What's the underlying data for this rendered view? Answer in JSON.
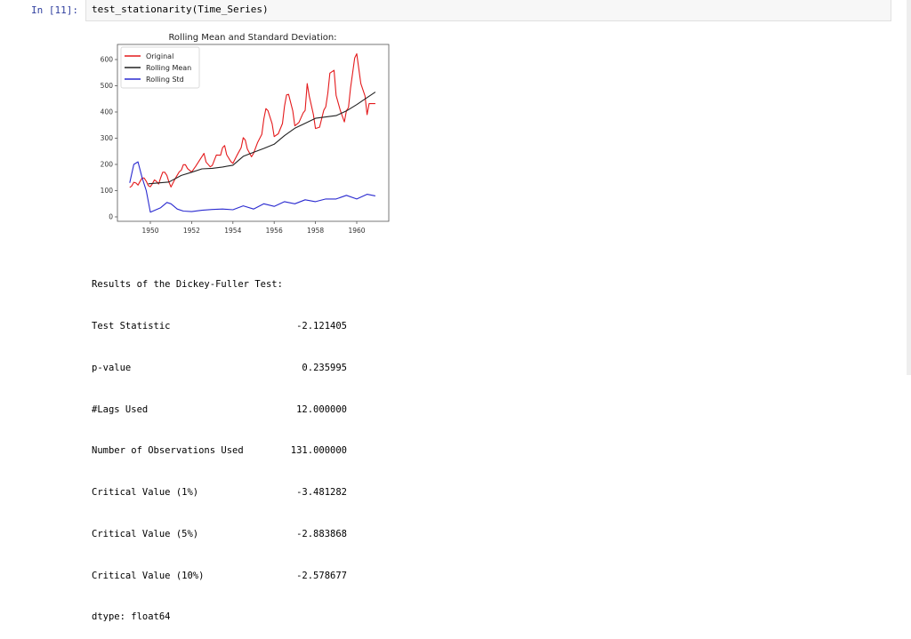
{
  "cell": {
    "prompt": "In [11]:",
    "code": "test_stationarity(Time_Series)"
  },
  "chart_data": {
    "type": "line",
    "title": "Rolling Mean and Standard Deviation:",
    "xlabel": "",
    "ylabel": "",
    "xlim": [
      1948.6,
      1961.5
    ],
    "ylim": [
      -20,
      650
    ],
    "x_ticks": [
      "1950",
      "1952",
      "1954",
      "1956",
      "1958",
      "1960"
    ],
    "y_ticks": [
      "0",
      "100",
      "200",
      "300",
      "400",
      "500",
      "600"
    ],
    "legend": {
      "position": "upper left",
      "entries": [
        {
          "label": "Original",
          "color": "#e41a1c"
        },
        {
          "label": "Rolling Mean",
          "color": "#222222"
        },
        {
          "label": "Rolling Std",
          "color": "#2a2ad0"
        }
      ]
    },
    "grid": false,
    "series": [
      {
        "name": "Original",
        "color": "#e41a1c",
        "x": [
          1949.0,
          1949.1,
          1949.2,
          1949.3,
          1949.4,
          1949.5,
          1949.6,
          1949.7,
          1949.8,
          1949.9,
          1950.0,
          1950.1,
          1950.2,
          1950.3,
          1950.4,
          1950.5,
          1950.6,
          1950.7,
          1950.8,
          1950.9,
          1951.0,
          1951.2,
          1951.4,
          1951.5,
          1951.6,
          1951.7,
          1951.8,
          1952.0,
          1952.2,
          1952.4,
          1952.5,
          1952.6,
          1952.7,
          1952.9,
          1953.0,
          1953.2,
          1953.4,
          1953.5,
          1953.6,
          1953.7,
          1953.9,
          1954.0,
          1954.2,
          1954.4,
          1954.5,
          1954.6,
          1954.7,
          1954.9,
          1955.0,
          1955.2,
          1955.4,
          1955.5,
          1955.6,
          1955.7,
          1955.9,
          1956.0,
          1956.2,
          1956.4,
          1956.5,
          1956.6,
          1956.7,
          1956.9,
          1957.0,
          1957.2,
          1957.4,
          1957.5,
          1957.6,
          1957.7,
          1957.9,
          1958.0,
          1958.2,
          1958.4,
          1958.5,
          1958.6,
          1958.7,
          1958.9,
          1959.0,
          1959.2,
          1959.4,
          1959.5,
          1959.6,
          1959.7,
          1959.9,
          1960.0,
          1960.2,
          1960.4,
          1960.5,
          1960.6,
          1960.7,
          1960.9
        ],
        "values": [
          112,
          118,
          132,
          129,
          121,
          135,
          148,
          148,
          136,
          119,
          115,
          126,
          141,
          135,
          125,
          149,
          170,
          170,
          158,
          133,
          114,
          145,
          172,
          178,
          199,
          199,
          184,
          171,
          193,
          218,
          230,
          242,
          209,
          191,
          196,
          236,
          235,
          264,
          272,
          237,
          211,
          204,
          235,
          264,
          302,
          293,
          259,
          229,
          242,
          284,
          315,
          374,
          413,
          405,
          355,
          306,
          317,
          356,
          422,
          465,
          467,
          404,
          347,
          360,
          396,
          406,
          508,
          461,
          390,
          337,
          342,
          406,
          420,
          472,
          548,
          559,
          463,
          407,
          362,
          405,
          417,
          491,
          606,
          622,
          508,
          461,
          390,
          432,
          432,
          432
        ]
      },
      {
        "name": "Rolling Mean",
        "color": "#222222",
        "x": [
          1949.9,
          1950.9,
          1951.5,
          1952.0,
          1952.5,
          1953.0,
          1953.5,
          1954.0,
          1954.5,
          1955.0,
          1955.5,
          1956.0,
          1956.5,
          1957.0,
          1957.5,
          1958.0,
          1958.5,
          1959.0,
          1959.5,
          1960.0,
          1960.5,
          1960.9
        ],
        "values": [
          126,
          133,
          158,
          170,
          183,
          185,
          190,
          197,
          231,
          246,
          261,
          277,
          310,
          338,
          357,
          376,
          381,
          386,
          404,
          428,
          455,
          476
        ]
      },
      {
        "name": "Rolling Std",
        "color": "#2a2ad0",
        "x": [
          1949.0,
          1949.2,
          1949.4,
          1949.6,
          1949.8,
          1950.0,
          1950.5,
          1950.8,
          1951.0,
          1951.3,
          1951.6,
          1952.0,
          1952.5,
          1953.0,
          1953.5,
          1954.0,
          1954.5,
          1955.0,
          1955.5,
          1956.0,
          1956.5,
          1957.0,
          1957.5,
          1958.0,
          1958.5,
          1959.0,
          1959.5,
          1960.0,
          1960.5,
          1960.9
        ],
        "values": [
          130,
          200,
          210,
          150,
          100,
          18,
          35,
          55,
          50,
          30,
          22,
          20,
          25,
          28,
          30,
          27,
          42,
          30,
          50,
          40,
          58,
          50,
          65,
          58,
          68,
          68,
          82,
          68,
          86,
          80
        ]
      }
    ]
  },
  "output": {
    "heading": "Results of the Dickey-Fuller Test:",
    "rows": [
      {
        "label": "Test Statistic",
        "value": "-2.121405"
      },
      {
        "label": "p-value",
        "value": "0.235995"
      },
      {
        "label": "#Lags Used",
        "value": "12.000000"
      },
      {
        "label": "Number of Observations Used",
        "value": "131.000000"
      },
      {
        "label": "Critical Value (1%)",
        "value": "-3.481282"
      },
      {
        "label": "Critical Value (5%)",
        "value": "-2.883868"
      },
      {
        "label": "Critical Value (10%)",
        "value": "-2.578677"
      }
    ],
    "dtype": "dtype: float64"
  }
}
